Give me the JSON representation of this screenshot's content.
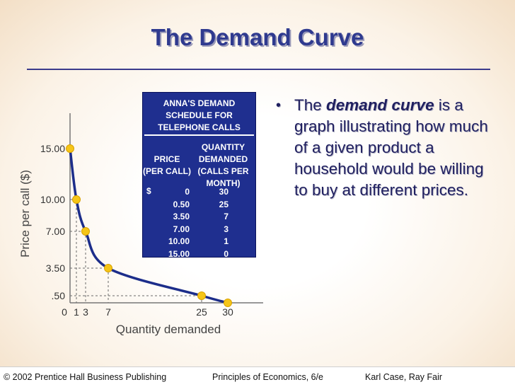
{
  "title": "The Demand Curve",
  "bullet": {
    "before": "The ",
    "emphasis": "demand curve",
    "after": " is a graph illustrating how much of a given product a household would be willing to buy at different prices."
  },
  "schedule": {
    "title": "ANNA'S DEMAND SCHEDULE FOR TELEPHONE CALLS",
    "col_price": "PRICE (PER CALL)",
    "col_quantity": "QUANTITY DEMANDED (CALLS PER MONTH)",
    "currency": "$",
    "rows": [
      {
        "price": "0",
        "quantity": "30"
      },
      {
        "price": "0.50",
        "quantity": "25"
      },
      {
        "price": "3.50",
        "quantity": "7"
      },
      {
        "price": "7.00",
        "quantity": "3"
      },
      {
        "price": "10.00",
        "quantity": "1"
      },
      {
        "price": "15.00",
        "quantity": "0"
      }
    ]
  },
  "chart_data": {
    "type": "line",
    "xlabel": "Quantity demanded",
    "ylabel": "Price per call ($)",
    "x_ticks": [
      "0",
      "1",
      "3",
      "7",
      "25",
      "30"
    ],
    "y_ticks": [
      ".50",
      "3.50",
      "7.00",
      "10.00",
      "15.00"
    ],
    "points": [
      {
        "x": 0,
        "y": 15.0
      },
      {
        "x": 1,
        "y": 10.0
      },
      {
        "x": 3,
        "y": 7.0
      },
      {
        "x": 7,
        "y": 3.5
      },
      {
        "x": 25,
        "y": 0.5
      },
      {
        "x": 30,
        "y": 0
      }
    ],
    "colors": {
      "curve": "#1c2d8a",
      "point": "#f5c518",
      "guide": "#6a6a6a"
    }
  },
  "footer": {
    "left": "© 2002 Prentice Hall Business Publishing",
    "center": "Principles of Economics, 6/e",
    "right": "Karl Case, Ray Fair"
  }
}
